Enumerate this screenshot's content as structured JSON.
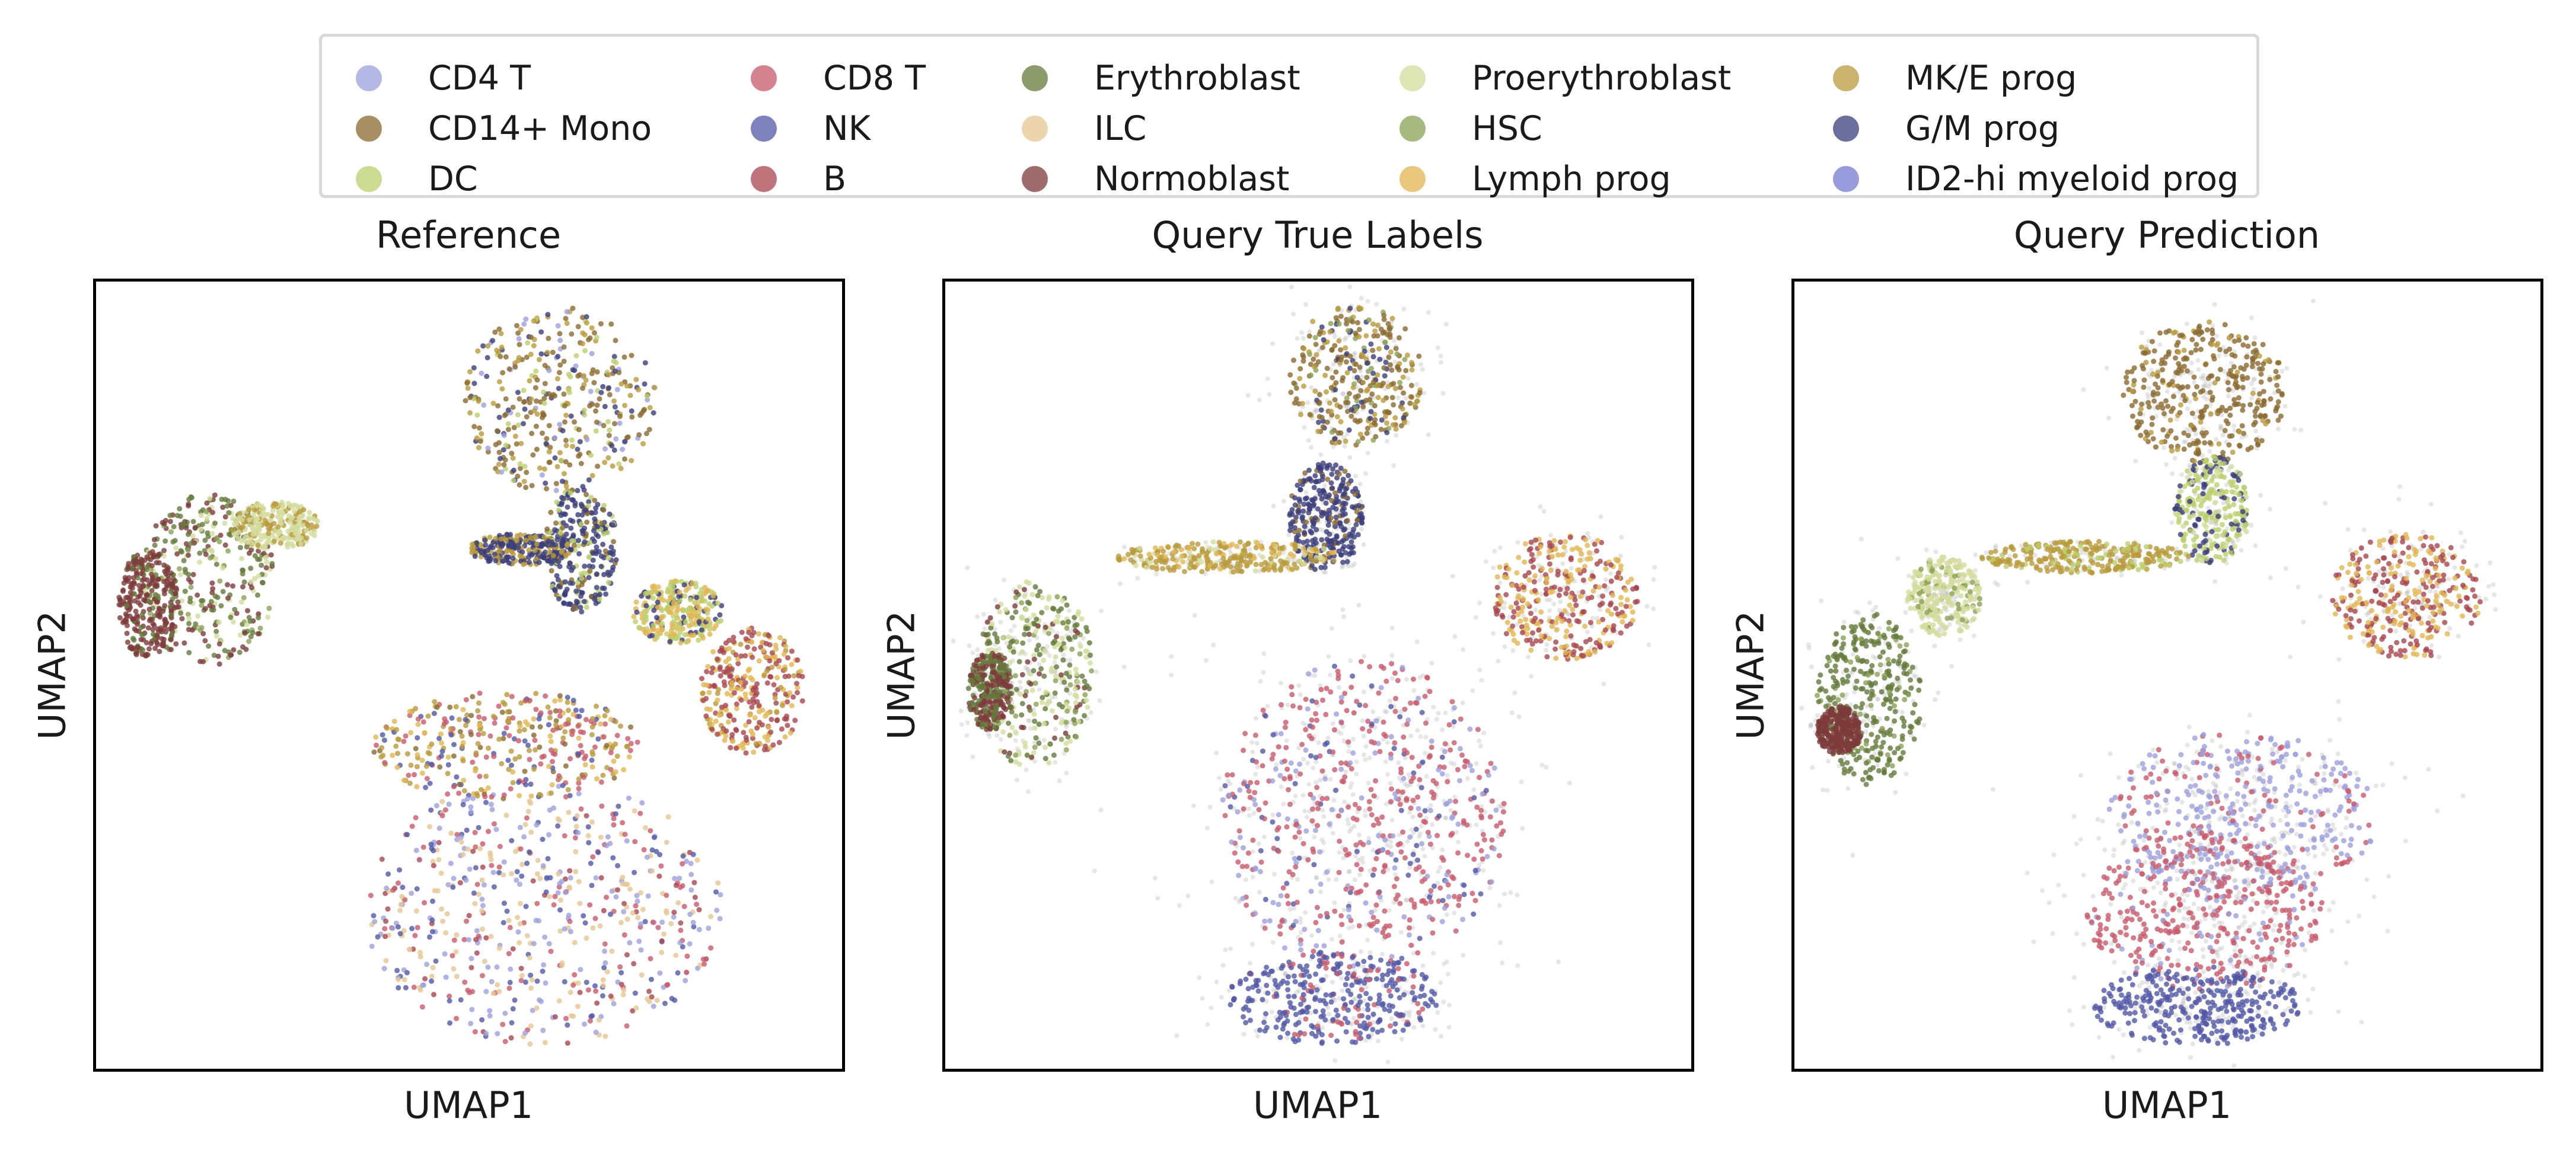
{
  "chart_data": {
    "type": "scatter",
    "xlabel": "UMAP1",
    "ylabel": "UMAP2",
    "grid": false,
    "legend_position": "top",
    "legend": [
      {
        "name": "CD4 T",
        "color": "#9ca0dc"
      },
      {
        "name": "CD14+ Mono",
        "color": "#8b6a2f"
      },
      {
        "name": "DC",
        "color": "#bccf6e"
      },
      {
        "name": "CD8 T",
        "color": "#c85a6c"
      },
      {
        "name": "NK",
        "color": "#5157a6"
      },
      {
        "name": "B",
        "color": "#a8464e"
      },
      {
        "name": "Erythroblast",
        "color": "#647a3b"
      },
      {
        "name": "ILC",
        "color": "#e6c692"
      },
      {
        "name": "Normoblast",
        "color": "#7d3b3b"
      },
      {
        "name": "Proerythroblast",
        "color": "#d3dc9c"
      },
      {
        "name": "HSC",
        "color": "#8ba156"
      },
      {
        "name": "Lymph prog",
        "color": "#e2b552"
      },
      {
        "name": "MK/E prog",
        "color": "#b99a3c"
      },
      {
        "name": "G/M prog",
        "color": "#3b3d7c"
      },
      {
        "name": "ID2-hi myeloid prog",
        "color": "#7479d0"
      }
    ],
    "panels": [
      {
        "title": "Reference",
        "clusters": [
          {
            "x": 0.62,
            "y": 0.85,
            "rx": 0.13,
            "ry": 0.12,
            "weights": {
              "CD14+ Mono": 4,
              "G/M prog": 2,
              "MK/E prog": 2,
              "DC": 1,
              "CD4 T": 1
            }
          },
          {
            "x": 0.65,
            "y": 0.66,
            "rx": 0.05,
            "ry": 0.08,
            "weights": {
              "G/M prog": 4,
              "CD14+ Mono": 1,
              "DC": 1
            }
          },
          {
            "x": 0.57,
            "y": 0.66,
            "rx": 0.07,
            "ry": 0.02,
            "weights": {
              "G/M prog": 3,
              "MK/E prog": 2
            }
          },
          {
            "x": 0.88,
            "y": 0.48,
            "rx": 0.07,
            "ry": 0.08,
            "weights": {
              "Lymph prog": 3,
              "B": 3,
              "MK/E prog": 1
            }
          },
          {
            "x": 0.78,
            "y": 0.58,
            "rx": 0.06,
            "ry": 0.04,
            "weights": {
              "DC": 2,
              "Lymph prog": 2,
              "G/M prog": 1
            }
          },
          {
            "x": 0.15,
            "y": 0.62,
            "rx": 0.09,
            "ry": 0.11,
            "weights": {
              "Erythroblast": 4,
              "Normoblast": 3,
              "Proerythroblast": 2,
              "HSC": 1
            }
          },
          {
            "x": 0.07,
            "y": 0.59,
            "rx": 0.04,
            "ry": 0.07,
            "weights": {
              "Normoblast": 5,
              "Erythroblast": 1
            }
          },
          {
            "x": 0.24,
            "y": 0.69,
            "rx": 0.06,
            "ry": 0.03,
            "weights": {
              "Proerythroblast": 4,
              "MK/E prog": 2
            }
          },
          {
            "x": 0.6,
            "y": 0.2,
            "rx": 0.24,
            "ry": 0.17,
            "weights": {
              "ILC": 3,
              "CD4 T": 3,
              "CD8 T": 2,
              "NK": 2,
              "B": 1
            }
          },
          {
            "x": 0.55,
            "y": 0.41,
            "rx": 0.18,
            "ry": 0.07,
            "weights": {
              "CD8 T": 2,
              "MK/E prog": 2,
              "CD14+ Mono": 1,
              "NK": 1,
              "Lymph prog": 1
            }
          }
        ]
      },
      {
        "title": "Query True Labels",
        "clusters": [
          {
            "x": 0.55,
            "y": 0.88,
            "rx": 0.09,
            "ry": 0.09,
            "weights": {
              "CD14+ Mono": 4,
              "MK/E prog": 2,
              "G/M prog": 1,
              "HSC": 1
            }
          },
          {
            "x": 0.51,
            "y": 0.7,
            "rx": 0.05,
            "ry": 0.07,
            "weights": {
              "G/M prog": 4,
              "CD14+ Mono": 1
            }
          },
          {
            "x": 0.38,
            "y": 0.65,
            "rx": 0.15,
            "ry": 0.02,
            "weights": {
              "MK/E prog": 3,
              "Lymph prog": 1,
              "Proerythroblast": 1
            }
          },
          {
            "x": 0.83,
            "y": 0.6,
            "rx": 0.1,
            "ry": 0.08,
            "weights": {
              "Lymph prog": 3,
              "B": 3
            }
          },
          {
            "x": 0.12,
            "y": 0.5,
            "rx": 0.08,
            "ry": 0.12,
            "weights": {
              "Erythroblast": 3,
              "Proerythroblast": 3,
              "HSC": 1,
              "Normoblast": 1
            }
          },
          {
            "x": 0.06,
            "y": 0.48,
            "rx": 0.03,
            "ry": 0.05,
            "weights": {
              "Normoblast": 3,
              "Erythroblast": 2
            }
          },
          {
            "x": 0.56,
            "y": 0.32,
            "rx": 0.19,
            "ry": 0.2,
            "weights": {
              "CD8 T": 5,
              "CD4 T": 2,
              "NK": 1
            }
          },
          {
            "x": 0.52,
            "y": 0.09,
            "rx": 0.14,
            "ry": 0.06,
            "weights": {
              "NK": 5,
              "CD8 T": 1
            }
          }
        ]
      },
      {
        "title": "Query Prediction",
        "clusters": [
          {
            "x": 0.55,
            "y": 0.86,
            "rx": 0.11,
            "ry": 0.09,
            "weights": {
              "CD14+ Mono": 6,
              "MK/E prog": 1
            }
          },
          {
            "x": 0.56,
            "y": 0.71,
            "rx": 0.05,
            "ry": 0.07,
            "weights": {
              "DC": 3,
              "G/M prog": 2,
              "Proerythroblast": 1
            }
          },
          {
            "x": 0.39,
            "y": 0.65,
            "rx": 0.14,
            "ry": 0.02,
            "weights": {
              "MK/E prog": 3,
              "DC": 1
            }
          },
          {
            "x": 0.82,
            "y": 0.6,
            "rx": 0.1,
            "ry": 0.08,
            "weights": {
              "B": 4,
              "Lymph prog": 3
            }
          },
          {
            "x": 0.2,
            "y": 0.6,
            "rx": 0.05,
            "ry": 0.05,
            "weights": {
              "Proerythroblast": 5,
              "HSC": 1
            }
          },
          {
            "x": 0.1,
            "y": 0.47,
            "rx": 0.07,
            "ry": 0.11,
            "weights": {
              "Erythroblast": 5,
              "HSC": 1
            }
          },
          {
            "x": 0.06,
            "y": 0.43,
            "rx": 0.03,
            "ry": 0.03,
            "weights": {
              "Normoblast": 4
            }
          },
          {
            "x": 0.6,
            "y": 0.32,
            "rx": 0.18,
            "ry": 0.11,
            "weights": {
              "CD4 T": 5,
              "CD8 T": 2
            }
          },
          {
            "x": 0.55,
            "y": 0.2,
            "rx": 0.16,
            "ry": 0.1,
            "weights": {
              "CD8 T": 5,
              "CD4 T": 1
            }
          },
          {
            "x": 0.54,
            "y": 0.08,
            "rx": 0.14,
            "ry": 0.05,
            "weights": {
              "NK": 6
            }
          }
        ]
      }
    ]
  }
}
